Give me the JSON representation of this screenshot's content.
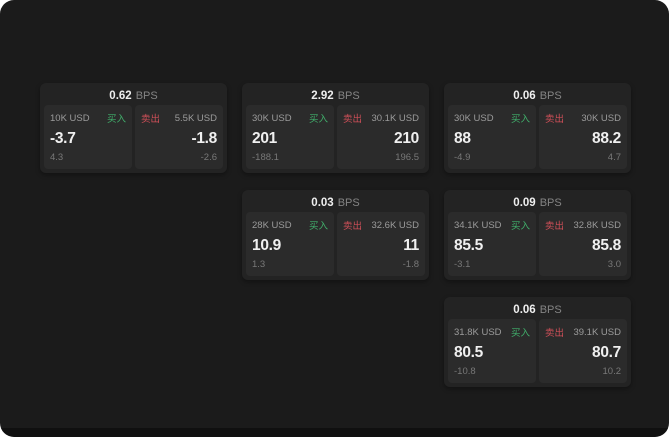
{
  "labels": {
    "bps_unit": "BPS",
    "buy": "买入",
    "sell": "卖出"
  },
  "colors": {
    "background": "#1b1b1b",
    "card": "#232323",
    "panel": "#2b2b2b",
    "buy_green": "#41b06c",
    "sell_red": "#cf4f58"
  },
  "cards": [
    {
      "bps": "0.62",
      "buy": {
        "size": "10K USD",
        "price": "-3.7",
        "delta": "4.3"
      },
      "sell": {
        "size": "5.5K USD",
        "price": "-1.8",
        "delta": "-2.6"
      }
    },
    {
      "bps": "2.92",
      "buy": {
        "size": "30K USD",
        "price": "201",
        "delta": "-188.1"
      },
      "sell": {
        "size": "30.1K USD",
        "price": "210",
        "delta": "196.5"
      }
    },
    {
      "bps": "0.06",
      "buy": {
        "size": "30K USD",
        "price": "88",
        "delta": "-4.9"
      },
      "sell": {
        "size": "30K USD",
        "price": "88.2",
        "delta": "4.7"
      }
    },
    {
      "bps": "0.03",
      "buy": {
        "size": "28K USD",
        "price": "10.9",
        "delta": "1.3"
      },
      "sell": {
        "size": "32.6K USD",
        "price": "11",
        "delta": "-1.8"
      }
    },
    {
      "bps": "0.09",
      "buy": {
        "size": "34.1K USD",
        "price": "85.5",
        "delta": "-3.1"
      },
      "sell": {
        "size": "32.8K USD",
        "price": "85.8",
        "delta": "3.0"
      }
    },
    {
      "bps": "0.06",
      "buy": {
        "size": "31.8K USD",
        "price": "80.5",
        "delta": "-10.8"
      },
      "sell": {
        "size": "39.1K USD",
        "price": "80.7",
        "delta": "10.2"
      }
    }
  ]
}
